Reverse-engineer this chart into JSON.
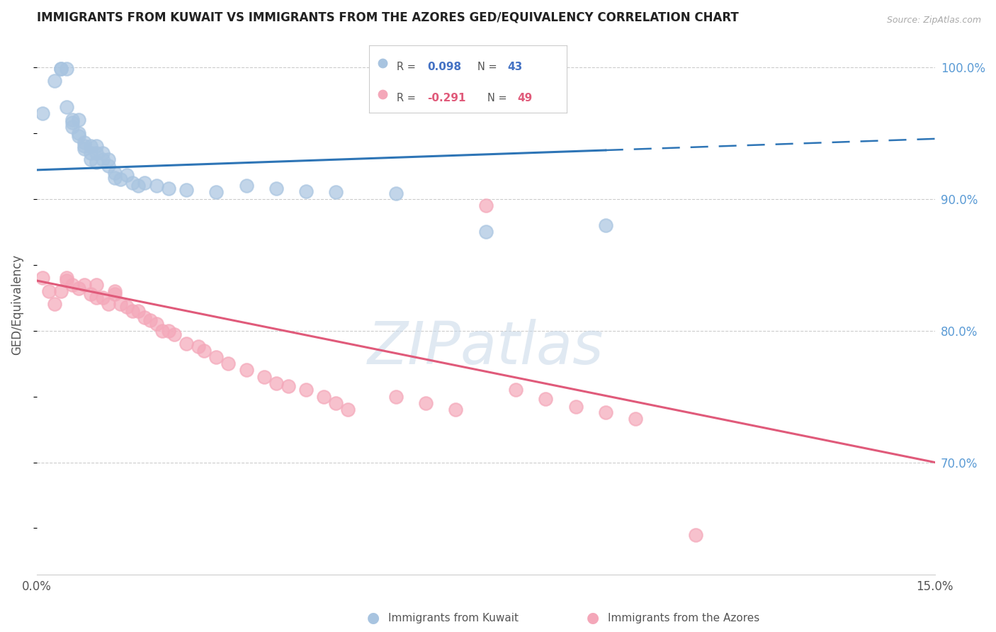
{
  "title": "IMMIGRANTS FROM KUWAIT VS IMMIGRANTS FROM THE AZORES GED/EQUIVALENCY CORRELATION CHART",
  "source": "Source: ZipAtlas.com",
  "ylabel": "GED/Equivalency",
  "right_ylabel_color": "#5b9bd5",
  "xlim": [
    0.0,
    0.15
  ],
  "ylim": [
    0.615,
    1.025
  ],
  "yticks_right": [
    0.7,
    0.8,
    0.9,
    1.0
  ],
  "ytick_right_labels": [
    "70.0%",
    "80.0%",
    "90.0%",
    "100.0%"
  ],
  "kuwait_color": "#a8c4e0",
  "azores_color": "#f4a7b9",
  "kuwait_line_color": "#2e75b6",
  "azores_line_color": "#e05a7a",
  "legend_R_color_kuwait": "#4472c4",
  "legend_R_color_azores": "#e05a7a",
  "watermark": "ZIPatlas",
  "watermark_color": "#c8d8e8",
  "kuwait_scatter_x": [
    0.001,
    0.003,
    0.004,
    0.004,
    0.005,
    0.005,
    0.006,
    0.006,
    0.006,
    0.007,
    0.007,
    0.007,
    0.008,
    0.008,
    0.008,
    0.009,
    0.009,
    0.009,
    0.01,
    0.01,
    0.01,
    0.011,
    0.011,
    0.012,
    0.012,
    0.013,
    0.013,
    0.014,
    0.015,
    0.016,
    0.017,
    0.018,
    0.02,
    0.022,
    0.025,
    0.03,
    0.035,
    0.04,
    0.045,
    0.05,
    0.06,
    0.075,
    0.095
  ],
  "kuwait_scatter_y": [
    0.965,
    0.99,
    0.999,
    0.999,
    0.999,
    0.97,
    0.96,
    0.955,
    0.958,
    0.96,
    0.95,
    0.948,
    0.943,
    0.94,
    0.938,
    0.94,
    0.935,
    0.93,
    0.94,
    0.935,
    0.928,
    0.935,
    0.93,
    0.93,
    0.925,
    0.92,
    0.916,
    0.915,
    0.918,
    0.912,
    0.91,
    0.912,
    0.91,
    0.908,
    0.907,
    0.905,
    0.91,
    0.908,
    0.906,
    0.905,
    0.904,
    0.875,
    0.88
  ],
  "azores_scatter_x": [
    0.001,
    0.002,
    0.003,
    0.004,
    0.005,
    0.005,
    0.006,
    0.007,
    0.008,
    0.009,
    0.01,
    0.01,
    0.011,
    0.012,
    0.013,
    0.013,
    0.014,
    0.015,
    0.016,
    0.017,
    0.018,
    0.019,
    0.02,
    0.021,
    0.022,
    0.023,
    0.025,
    0.027,
    0.028,
    0.03,
    0.032,
    0.035,
    0.038,
    0.04,
    0.042,
    0.045,
    0.048,
    0.05,
    0.052,
    0.06,
    0.065,
    0.07,
    0.075,
    0.08,
    0.085,
    0.09,
    0.095,
    0.1,
    0.11
  ],
  "azores_scatter_y": [
    0.84,
    0.83,
    0.82,
    0.83,
    0.838,
    0.84,
    0.835,
    0.832,
    0.835,
    0.828,
    0.835,
    0.825,
    0.825,
    0.82,
    0.83,
    0.828,
    0.82,
    0.818,
    0.815,
    0.815,
    0.81,
    0.808,
    0.805,
    0.8,
    0.8,
    0.797,
    0.79,
    0.788,
    0.785,
    0.78,
    0.775,
    0.77,
    0.765,
    0.76,
    0.758,
    0.755,
    0.75,
    0.745,
    0.74,
    0.75,
    0.745,
    0.74,
    0.895,
    0.755,
    0.748,
    0.742,
    0.738,
    0.733,
    0.645
  ]
}
